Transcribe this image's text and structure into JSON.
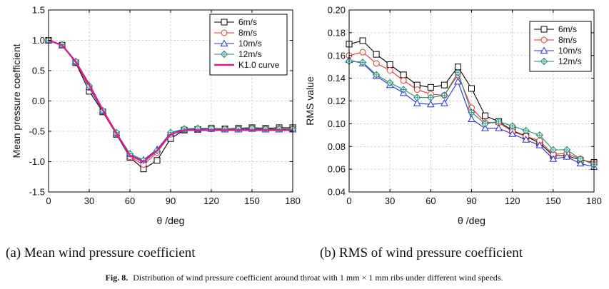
{
  "figure": {
    "caption_label": "Fig. 8.",
    "caption_text": "Distribution of wind pressure coefficient around throat with 1 mm × 1 mm ribs under different wind speeds."
  },
  "chart_data": [
    {
      "type": "line",
      "subtitle": "(a) Mean wind pressure coefficient",
      "xlabel": "θ /deg",
      "ylabel": "Mean pressure coefficient",
      "xlim": [
        0,
        180
      ],
      "ylim": [
        -1.5,
        1.5
      ],
      "xticks": [
        0,
        30,
        60,
        90,
        120,
        150,
        180
      ],
      "xticklabels": [
        "0",
        "30",
        "60",
        "90",
        "120",
        "150",
        "180"
      ],
      "yticks": [
        -1.5,
        -1.0,
        -0.5,
        0.0,
        0.5,
        1.0,
        1.5
      ],
      "yticklabels": [
        "-1.5",
        "-1.0",
        "-0.5",
        "0.0",
        "0.5",
        "1.0",
        "1.5"
      ],
      "grid": true,
      "legend_position": "top-right",
      "x": [
        0,
        10,
        20,
        30,
        40,
        50,
        60,
        70,
        80,
        90,
        100,
        110,
        120,
        130,
        140,
        150,
        160,
        170,
        180
      ],
      "series": [
        {
          "name": "6m/s",
          "marker": "square",
          "color": "#000000",
          "values": [
            1.0,
            0.92,
            0.63,
            0.16,
            -0.18,
            -0.55,
            -0.93,
            -1.12,
            -0.98,
            -0.62,
            -0.48,
            -0.47,
            -0.45,
            -0.46,
            -0.45,
            -0.44,
            -0.45,
            -0.44,
            -0.44
          ]
        },
        {
          "name": "8m/s",
          "marker": "circle",
          "color": "#e8322e",
          "values": [
            1.0,
            0.92,
            0.64,
            0.22,
            -0.17,
            -0.54,
            -0.92,
            -1.05,
            -0.85,
            -0.55,
            -0.47,
            -0.47,
            -0.46,
            -0.46,
            -0.46,
            -0.45,
            -0.46,
            -0.46,
            -0.46
          ]
        },
        {
          "name": "10m/s",
          "marker": "triangle",
          "color": "#2b2bd9",
          "values": [
            1.0,
            0.92,
            0.65,
            0.23,
            -0.17,
            -0.53,
            -0.88,
            -0.97,
            -0.8,
            -0.52,
            -0.47,
            -0.46,
            -0.46,
            -0.47,
            -0.47,
            -0.46,
            -0.47,
            -0.47,
            -0.47
          ]
        },
        {
          "name": "12m/s",
          "marker": "diamond",
          "color": "#1f8a78",
          "values": [
            1.0,
            0.93,
            0.65,
            0.25,
            -0.16,
            -0.52,
            -0.87,
            -0.98,
            -0.82,
            -0.52,
            -0.46,
            -0.45,
            -0.45,
            -0.46,
            -0.46,
            -0.45,
            -0.46,
            -0.46,
            -0.46
          ]
        },
        {
          "name": "K1.0 curve",
          "marker": "none",
          "color": "#d61f8c",
          "line_width": "thick",
          "values": [
            1.0,
            0.92,
            0.65,
            0.27,
            -0.15,
            -0.53,
            -0.9,
            -1.0,
            -0.82,
            -0.55,
            -0.48,
            -0.48,
            -0.48,
            -0.48,
            -0.48,
            -0.48,
            -0.48,
            -0.48,
            -0.48
          ]
        }
      ]
    },
    {
      "type": "line",
      "subtitle": "(b) RMS of wind pressure coefficient",
      "xlabel": "θ /deg",
      "ylabel": "RMS value",
      "xlim": [
        0,
        180
      ],
      "ylim": [
        0.04,
        0.2
      ],
      "xticks": [
        0,
        30,
        60,
        90,
        120,
        150,
        180
      ],
      "xticklabels": [
        "0",
        "30",
        "60",
        "90",
        "120",
        "150",
        "180"
      ],
      "yticks": [
        0.04,
        0.06,
        0.08,
        0.1,
        0.12,
        0.14,
        0.16,
        0.18,
        0.2
      ],
      "yticklabels": [
        "0.04",
        "0.06",
        "0.08",
        "0.10",
        "0.12",
        "0.14",
        "0.16",
        "0.18",
        "0.20"
      ],
      "grid": true,
      "legend_position": "top-right",
      "x": [
        0,
        10,
        20,
        30,
        40,
        50,
        60,
        70,
        80,
        90,
        100,
        110,
        120,
        130,
        140,
        150,
        160,
        170,
        180
      ],
      "series": [
        {
          "name": "6m/s",
          "marker": "square",
          "color": "#000000",
          "values": [
            0.17,
            0.173,
            0.161,
            0.152,
            0.143,
            0.134,
            0.132,
            0.134,
            0.15,
            0.131,
            0.107,
            0.102,
            0.094,
            0.089,
            0.083,
            0.072,
            0.072,
            0.068,
            0.066
          ]
        },
        {
          "name": "8m/s",
          "marker": "circle",
          "color": "#e8322e",
          "values": [
            0.16,
            0.163,
            0.153,
            0.147,
            0.138,
            0.13,
            0.126,
            0.125,
            0.143,
            0.114,
            0.101,
            0.101,
            0.093,
            0.089,
            0.085,
            0.073,
            0.074,
            0.069,
            0.065
          ]
        },
        {
          "name": "10m/s",
          "marker": "triangle",
          "color": "#2b2bd9",
          "values": [
            0.156,
            0.153,
            0.142,
            0.134,
            0.127,
            0.118,
            0.117,
            0.118,
            0.137,
            0.104,
            0.096,
            0.096,
            0.091,
            0.086,
            0.081,
            0.069,
            0.071,
            0.065,
            0.062
          ]
        },
        {
          "name": "12m/s",
          "marker": "diamond",
          "color": "#1f8a78",
          "values": [
            0.155,
            0.154,
            0.143,
            0.136,
            0.13,
            0.123,
            0.123,
            0.125,
            0.145,
            0.11,
            0.1,
            0.102,
            0.098,
            0.094,
            0.09,
            0.077,
            0.077,
            0.069,
            0.064
          ]
        }
      ]
    }
  ]
}
